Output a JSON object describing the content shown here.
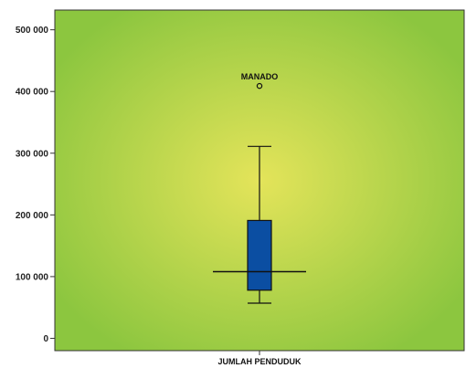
{
  "chart_data": {
    "type": "boxplot",
    "categories": [
      "JUMLAH PENDUDUK"
    ],
    "boxes": [
      {
        "category": "JUMLAH PENDUDUK",
        "whisker_low": 57000,
        "q1": 78000,
        "median": 108000,
        "q3": 191000,
        "whisker_high": 311000,
        "outliers": [
          {
            "label": "MANADO",
            "value": 409000
          }
        ]
      }
    ],
    "ylim": [
      -20000,
      532000
    ],
    "yticks": [
      {
        "value": 0,
        "label": "0"
      },
      {
        "value": 100000,
        "label": "100 000"
      },
      {
        "value": 200000,
        "label": "200 000"
      },
      {
        "value": 300000,
        "label": "300 000"
      },
      {
        "value": 400000,
        "label": "400 000"
      },
      {
        "value": 500000,
        "label": "500 000"
      }
    ],
    "grid": false,
    "colors": {
      "box_fill": "#0b4ea2",
      "background_center": "#e4e45a",
      "background_edge": "#8cc63f"
    }
  }
}
